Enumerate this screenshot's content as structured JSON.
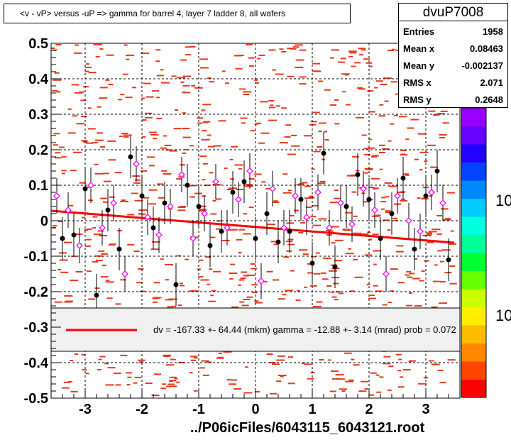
{
  "title": "<v - vP>       versus  -uP =>  gamma for barrel 4, layer 7 ladder 8, all wafers",
  "stats": {
    "name": "dvuP7008",
    "rows": [
      {
        "key": "Entries",
        "value": "1958"
      },
      {
        "key": "Mean x",
        "value": "0.08463"
      },
      {
        "key": "Mean y",
        "value": "-0.002137"
      },
      {
        "key": "RMS x",
        "value": "2.071"
      },
      {
        "key": "RMS y",
        "value": "0.2648"
      }
    ]
  },
  "fit_text": "dv = -167.33 +- 64.44 (mkm) gamma =  -12.88 +-  3.14 (mrad) prob = 0.072",
  "footer": "../P06icFiles/6043115_6043121.root",
  "palette_labels": [
    "10",
    "10"
  ],
  "colors": {
    "hist": "#e8381b",
    "fit": "#ff0000",
    "profile": "#000000",
    "profile2": "#ff00ff"
  },
  "chart_data": {
    "type": "scatter",
    "xlim": [
      -3.6,
      3.6
    ],
    "ylim": [
      -0.5,
      0.5
    ],
    "x_ticks": [
      -3,
      -2,
      -1,
      0,
      1,
      2,
      3
    ],
    "y_ticks": [
      -0.5,
      -0.4,
      -0.3,
      -0.2,
      -0.1,
      0,
      0.1,
      0.2,
      0.3,
      0.4,
      0.5
    ],
    "x_tick_labels": [
      "-3",
      "-2",
      "-1",
      "0",
      "1",
      "2",
      "3"
    ],
    "y_tick_labels": [
      "-0.5",
      "-0.4",
      "-0.3",
      "-0.2",
      "-0.1",
      "0",
      "0.1",
      "0.2",
      "0.3",
      "0.4",
      "0.5"
    ],
    "grid": true,
    "fit_line": {
      "x": [
        -3.6,
        3.5
      ],
      "y": [
        0.028,
        -0.062
      ]
    },
    "profile_black": {
      "x": [
        -3.4,
        -3.2,
        -3.0,
        -2.8,
        -2.6,
        -2.4,
        -2.2,
        -2.0,
        -1.8,
        -1.6,
        -1.4,
        -1.2,
        -1.0,
        -0.8,
        -0.6,
        -0.4,
        -0.2,
        0.0,
        0.2,
        0.4,
        0.6,
        0.8,
        1.0,
        1.2,
        1.4,
        1.6,
        1.8,
        2.0,
        2.2,
        2.4,
        2.6,
        2.8,
        3.0,
        3.2,
        3.4
      ],
      "y": [
        -0.05,
        -0.04,
        0.09,
        -0.21,
        0.03,
        -0.08,
        0.18,
        0.07,
        -0.02,
        0.05,
        -0.18,
        0.1,
        0.04,
        -0.07,
        -0.03,
        0.08,
        0.11,
        -0.05,
        0.02,
        -0.06,
        -0.03,
        0.06,
        -0.12,
        0.19,
        -0.13,
        0.04,
        0.13,
        0.06,
        -0.05,
        0.02,
        0.12,
        -0.08,
        0.07,
        0.14,
        -0.11
      ]
    },
    "profile_magenta": {
      "x": [
        -3.5,
        -3.3,
        -3.1,
        -2.9,
        -2.7,
        -2.5,
        -2.3,
        -2.1,
        -1.9,
        -1.7,
        -1.5,
        -1.3,
        -1.1,
        -0.9,
        -0.7,
        -0.5,
        -0.3,
        -0.1,
        0.1,
        0.3,
        0.5,
        0.7,
        0.9,
        1.1,
        1.3,
        1.5,
        1.7,
        1.9,
        2.1,
        2.3,
        2.5,
        2.7,
        2.9,
        3.1,
        3.3
      ],
      "y": [
        0.07,
        0.03,
        -0.07,
        0.1,
        -0.02,
        0.05,
        -0.15,
        0.16,
        0.01,
        -0.04,
        0.04,
        0.13,
        -0.05,
        0.02,
        0.11,
        -0.02,
        0.06,
        0.14,
        -0.17,
        0.09,
        -0.02,
        0.07,
        0.01,
        0.08,
        -0.02,
        0.05,
        -0.01,
        0.09,
        0.03,
        -0.15,
        0.07,
        0.0,
        -0.03,
        0.08,
        0.05
      ]
    }
  }
}
